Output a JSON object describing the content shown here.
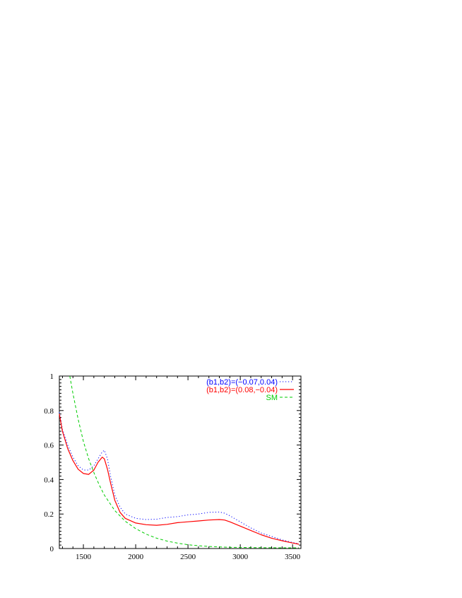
{
  "chart_data": {
    "type": "line",
    "title": "",
    "xlabel": "",
    "ylabel": "",
    "xlim": [
      1270,
      3580
    ],
    "ylim": [
      0,
      1
    ],
    "x_ticks": [
      1500,
      2000,
      2500,
      3000,
      3500
    ],
    "x_tick_labels": [
      "1500",
      "2000",
      "2500",
      "3000",
      "3500"
    ],
    "y_ticks": [
      0,
      0.2,
      0.4,
      0.6,
      0.8,
      1
    ],
    "y_tick_labels": [
      "0",
      "0.2",
      "0.4",
      "0.6",
      "0.8",
      "1"
    ],
    "grid": false,
    "legend_position": "top-right",
    "series": [
      {
        "name": "(b1,b2)=(−0.07,0.04)",
        "color": "#0000ff",
        "style": "dotted",
        "x": [
          1270,
          1300,
          1350,
          1400,
          1450,
          1500,
          1550,
          1600,
          1640,
          1680,
          1700,
          1730,
          1760,
          1800,
          1850,
          1900,
          2000,
          2100,
          2200,
          2300,
          2400,
          2500,
          2600,
          2700,
          2800,
          2850,
          2900,
          3000,
          3100,
          3200,
          3300,
          3400,
          3500,
          3560
        ],
        "y": [
          0.79,
          0.69,
          0.6,
          0.53,
          0.48,
          0.455,
          0.455,
          0.48,
          0.52,
          0.56,
          0.57,
          0.52,
          0.42,
          0.31,
          0.24,
          0.2,
          0.175,
          0.168,
          0.17,
          0.18,
          0.185,
          0.195,
          0.2,
          0.21,
          0.212,
          0.205,
          0.19,
          0.155,
          0.12,
          0.09,
          0.07,
          0.05,
          0.035,
          0.028
        ]
      },
      {
        "name": "(b1,b2)=(0.08,−0.04)",
        "color": "#ff0000",
        "style": "solid",
        "x": [
          1270,
          1300,
          1350,
          1400,
          1450,
          1500,
          1550,
          1600,
          1640,
          1680,
          1700,
          1730,
          1760,
          1800,
          1850,
          1900,
          2000,
          2100,
          2200,
          2300,
          2400,
          2500,
          2600,
          2700,
          2800,
          2850,
          2900,
          3000,
          3100,
          3200,
          3300,
          3400,
          3500,
          3560
        ],
        "y": [
          0.78,
          0.68,
          0.58,
          0.51,
          0.46,
          0.435,
          0.43,
          0.455,
          0.5,
          0.53,
          0.52,
          0.46,
          0.38,
          0.28,
          0.21,
          0.175,
          0.148,
          0.138,
          0.135,
          0.14,
          0.15,
          0.155,
          0.16,
          0.165,
          0.168,
          0.165,
          0.155,
          0.13,
          0.105,
          0.08,
          0.06,
          0.045,
          0.032,
          0.025
        ]
      },
      {
        "name": "SM",
        "color": "#00cc00",
        "style": "dashed",
        "x": [
          1370,
          1400,
          1450,
          1500,
          1550,
          1600,
          1650,
          1700,
          1800,
          1900,
          2000,
          2100,
          2200,
          2300,
          2400,
          2500,
          2600,
          2700,
          2800,
          2900,
          3000,
          3200,
          3400,
          3560
        ],
        "y": [
          1.0,
          0.9,
          0.75,
          0.62,
          0.52,
          0.44,
          0.37,
          0.31,
          0.22,
          0.158,
          0.115,
          0.083,
          0.06,
          0.043,
          0.031,
          0.022,
          0.016,
          0.012,
          0.009,
          0.007,
          0.006,
          0.005,
          0.004,
          0.004
        ]
      }
    ]
  }
}
